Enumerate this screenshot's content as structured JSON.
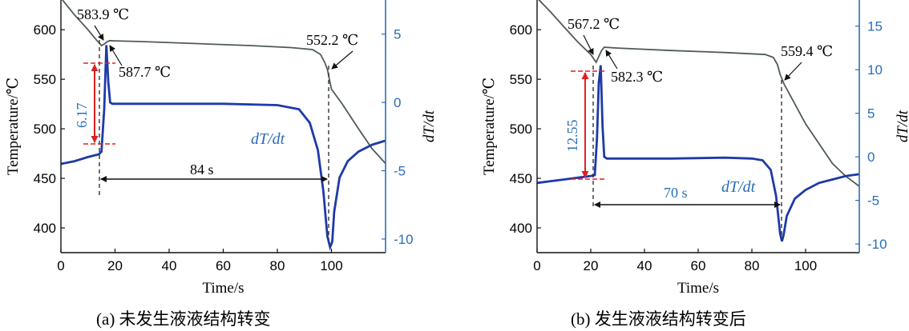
{
  "colors": {
    "temperature": "#505a5a",
    "dtdt": "#1e3aa8",
    "right_axis": "#2a6eb6",
    "marker": "#e02020",
    "axis": "#111111"
  },
  "chart_data": [
    {
      "type": "line",
      "caption": "(a) 未发生液液结构转变",
      "xlabel": "Time/s",
      "ylabel": "Temperature/℃",
      "y2label": "dT/dt",
      "xlim": [
        0,
        120
      ],
      "ylim": [
        375,
        630
      ],
      "y2lim": [
        -11,
        7.5
      ],
      "xticks": [
        "0",
        "20",
        "40",
        "60",
        "80",
        "100"
      ],
      "yticks": [
        "400",
        "450",
        "500",
        "550",
        "600"
      ],
      "y2ticks": [
        "-10",
        "-5",
        "0",
        "5"
      ],
      "series": [
        {
          "axis": "left",
          "x": [
            0,
            5,
            10,
            13,
            15,
            16,
            17,
            18,
            20,
            30,
            50,
            70,
            85,
            93,
            96,
            97.5,
            98.5,
            100,
            104,
            110,
            115,
            120
          ],
          "y": [
            632,
            615,
            600,
            590,
            583.9,
            585.5,
            587.7,
            589,
            588.8,
            588,
            586,
            584,
            582,
            580,
            575,
            567,
            560,
            540,
            525,
            500,
            480,
            465
          ]
        },
        {
          "axis": "right",
          "x": [
            0,
            5,
            10,
            14,
            15,
            16,
            16.8,
            17.5,
            18.2,
            19,
            20,
            40,
            60,
            80,
            88,
            92,
            95,
            97,
            98.5,
            99.5,
            100.3,
            101,
            103,
            106,
            110,
            115,
            120
          ],
          "y": [
            -4.5,
            -4.3,
            -4.0,
            -3.8,
            -3.6,
            -0.5,
            4.2,
            1.5,
            0.0,
            -0.1,
            -0.1,
            -0.1,
            -0.1,
            -0.2,
            -0.5,
            -1.5,
            -3.5,
            -6.5,
            -9.8,
            -10.6,
            -10.2,
            -8.0,
            -5.5,
            -4.3,
            -3.6,
            -3.1,
            -2.8
          ]
        }
      ],
      "annotations": {
        "t1": "583.9 ℃",
        "t2": "587.7 ℃",
        "t3": "552.2 ℃",
        "span": "84 s",
        "undercool": "6.17",
        "series_label": "dT/dt"
      }
    },
    {
      "type": "line",
      "caption": "(b) 发生液液结构转变后",
      "xlabel": "Time/s",
      "ylabel": "Temperature/℃",
      "y2label": "dT/dt",
      "xlim": [
        0,
        120
      ],
      "ylim": [
        375,
        630
      ],
      "y2lim": [
        -11,
        18
      ],
      "xticks": [
        "0",
        "20",
        "40",
        "60",
        "80",
        "100"
      ],
      "yticks": [
        "400",
        "450",
        "500",
        "550",
        "600"
      ],
      "y2ticks": [
        "-10",
        "-5",
        "0",
        "5",
        "10",
        "15"
      ],
      "series": [
        {
          "axis": "left",
          "x": [
            0,
            5,
            10,
            15,
            20,
            22,
            23,
            24,
            25,
            30,
            50,
            70,
            85,
            88,
            89.5,
            90.5,
            92,
            95,
            100,
            105,
            110,
            115,
            120
          ],
          "y": [
            632,
            618,
            603,
            588,
            575,
            567.2,
            573,
            579,
            582.3,
            581.5,
            579,
            577,
            575,
            572,
            565,
            555,
            545,
            530,
            505,
            485,
            465,
            452,
            442
          ],
          "key": "temperature"
        },
        {
          "axis": "right",
          "x": [
            0,
            5,
            10,
            15,
            20,
            21.5,
            22.3,
            23,
            23.7,
            24.4,
            25,
            26,
            30,
            50,
            70,
            80,
            84,
            87,
            89,
            90.5,
            91.2,
            91.8,
            93,
            96,
            100,
            105,
            110,
            115,
            120
          ],
          "y": [
            -3.0,
            -2.8,
            -2.6,
            -2.4,
            -2.2,
            -2.1,
            2.0,
            8.5,
            10.5,
            3.5,
            0.0,
            -0.2,
            -0.2,
            -0.2,
            -0.1,
            -0.2,
            -0.4,
            -1.5,
            -4.5,
            -8.8,
            -9.7,
            -9.0,
            -6.8,
            -4.8,
            -3.8,
            -3.0,
            -2.6,
            -2.2,
            -2.0
          ],
          "key": "dtdt"
        }
      ],
      "annotations": {
        "t1": "567.2 ℃",
        "t2": "582.3 ℃",
        "t3": "559.4 ℃",
        "span": "70 s",
        "undercool": "12.55",
        "series_label": "dT/dt"
      }
    }
  ]
}
